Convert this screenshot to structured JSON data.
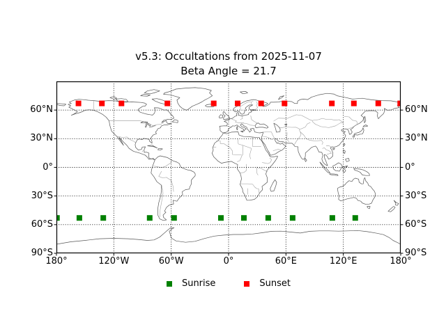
{
  "title": {
    "line1": "v5.3: Occultations from 2025-11-07",
    "line2": "Beta Angle = 21.7"
  },
  "axes": {
    "x_tick_labels": [
      "180°",
      "120°W",
      "60°W",
      "0°",
      "60°E",
      "120°E",
      "180°"
    ],
    "x_tick_lons": [
      -180,
      -120,
      -60,
      0,
      60,
      120,
      180
    ],
    "y_tick_labels": [
      "60°N",
      "30°N",
      "0°",
      "30°S",
      "60°S",
      "90°S"
    ],
    "y_tick_lats": [
      60,
      30,
      0,
      -30,
      -60,
      -90
    ],
    "grid_style": "dotted",
    "grid_color": "#000000"
  },
  "legend": {
    "items": [
      {
        "label": "Sunrise",
        "color": "#008000"
      },
      {
        "label": "Sunset",
        "color": "#ff0000"
      }
    ],
    "position": "bottom-center",
    "frame": false
  },
  "colors": {
    "background": "#ffffff",
    "coastline": "#555555",
    "country_border": "#999999",
    "sunrise": "#008000",
    "sunset": "#ff0000"
  },
  "chart_data": {
    "type": "scatter",
    "projection": "equirectangular-world-map",
    "title": "v5.3: Occultations from 2025-11-07",
    "subtitle": "Beta Angle = 21.7",
    "xlabel": "",
    "ylabel": "",
    "xlim": [
      -180,
      180
    ],
    "ylim": [
      -90,
      90
    ],
    "grid": true,
    "marker": "square",
    "marker_size_px": 8,
    "series": [
      {
        "name": "Sunrise",
        "color": "#008000",
        "lat_approx_deg": -53,
        "points": [
          [
            -179.5,
            -53
          ],
          [
            -156,
            -53
          ],
          [
            -131,
            -53
          ],
          [
            -82.5,
            -53
          ],
          [
            -57,
            -53
          ],
          [
            -8,
            -53
          ],
          [
            16,
            -53
          ],
          [
            41.5,
            -53
          ],
          [
            67,
            -53
          ],
          [
            108.5,
            -53
          ],
          [
            132.5,
            -53
          ]
        ]
      },
      {
        "name": "Sunset",
        "color": "#ff0000",
        "lat_approx_deg": 67,
        "points": [
          [
            -157,
            67
          ],
          [
            -132.5,
            67
          ],
          [
            -112,
            67
          ],
          [
            -64,
            67
          ],
          [
            -15.5,
            67
          ],
          [
            9.5,
            67
          ],
          [
            34,
            67
          ],
          [
            58.5,
            67
          ],
          [
            108,
            67
          ],
          [
            131,
            67
          ],
          [
            156.5,
            67
          ],
          [
            179.5,
            67
          ]
        ]
      }
    ]
  }
}
